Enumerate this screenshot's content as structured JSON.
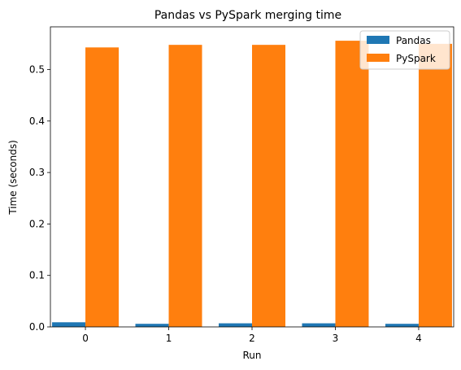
{
  "chart_data": {
    "type": "bar",
    "title": "Pandas vs PySpark merging time",
    "xlabel": "Run",
    "ylabel": "Time (seconds)",
    "categories": [
      "0",
      "1",
      "2",
      "3",
      "4"
    ],
    "series": [
      {
        "name": "Pandas",
        "color": "#1f77b4",
        "values": [
          0.009,
          0.006,
          0.007,
          0.007,
          0.006
        ]
      },
      {
        "name": "PySpark",
        "color": "#ff7f0e",
        "values": [
          0.543,
          0.548,
          0.548,
          0.556,
          0.55
        ]
      }
    ],
    "ylim": [
      0,
      0.583
    ],
    "yticks": [
      0.0,
      0.1,
      0.2,
      0.3,
      0.4,
      0.5
    ],
    "ytick_labels": [
      "0.0",
      "0.1",
      "0.2",
      "0.3",
      "0.4",
      "0.5"
    ],
    "grid": false,
    "legend_position": "top-right"
  }
}
